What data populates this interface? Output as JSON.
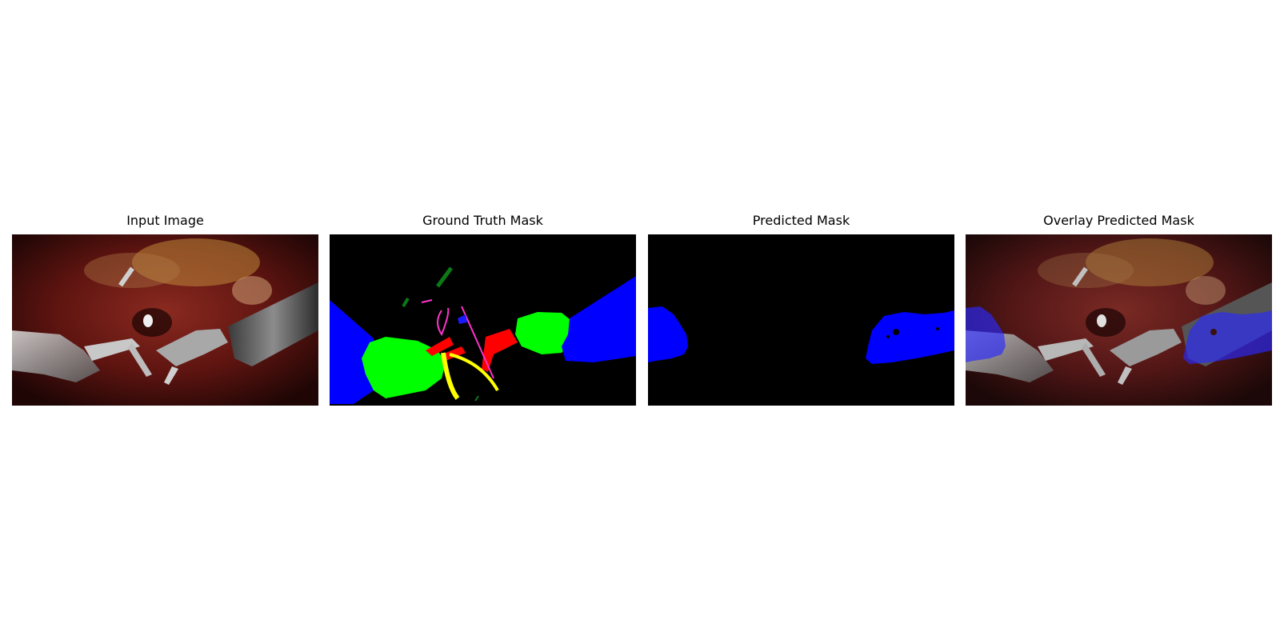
{
  "figure": {
    "panels": [
      {
        "id": "input",
        "title": "Input Image",
        "content": "surgical-scene-photo"
      },
      {
        "id": "ground-truth",
        "title": "Ground Truth Mask",
        "content": "segmentation-mask"
      },
      {
        "id": "predicted",
        "title": "Predicted Mask",
        "content": "segmentation-mask"
      },
      {
        "id": "overlay",
        "title": "Overlay Predicted Mask",
        "content": "photo-with-mask-overlay"
      }
    ],
    "mask_colors": {
      "background": "#000000",
      "blue": "#0000ff",
      "green": "#00ff00",
      "red": "#ff0000",
      "yellow": "#ffff00",
      "magenta": "#ff33cc",
      "dark_green": "#0b7a16"
    }
  }
}
